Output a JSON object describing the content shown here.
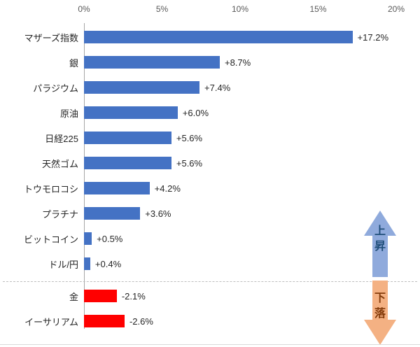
{
  "chart_data": {
    "type": "bar",
    "orientation": "horizontal",
    "title": "",
    "xlabel": "",
    "ylabel": "",
    "x_axis": {
      "ticks": [
        "0%",
        "5%",
        "10%",
        "15%",
        "20%"
      ],
      "min": 0,
      "max": 20,
      "grid": false
    },
    "categories": [
      "マザーズ指数",
      "銀",
      "パラジウム",
      "原油",
      "日経225",
      "天然ゴム",
      "トウモロコシ",
      "プラチナ",
      "ビットコイン",
      "ドル/円",
      "金",
      "イーサリアム"
    ],
    "values": [
      17.2,
      8.7,
      7.4,
      6.0,
      5.6,
      5.6,
      4.2,
      3.6,
      0.5,
      0.4,
      -2.1,
      -2.6
    ],
    "value_labels": [
      "+17.2%",
      "+8.7%",
      "+7.4%",
      "+6.0%",
      "+5.6%",
      "+5.6%",
      "+4.2%",
      "+3.6%",
      "+0.5%",
      "+0.4%",
      "-2.1%",
      "-2.6%"
    ],
    "positive_color": "#4472c4",
    "negative_color": "#ff0000",
    "legend": "none"
  },
  "annotations": {
    "up": {
      "chars": [
        "上",
        "昇"
      ],
      "arrow_color": "#8faadc",
      "text_color": "#1f4e79"
    },
    "down": {
      "chars": [
        "下",
        "落"
      ],
      "arrow_color": "#f4b183",
      "text_color": "#843c0c"
    }
  }
}
